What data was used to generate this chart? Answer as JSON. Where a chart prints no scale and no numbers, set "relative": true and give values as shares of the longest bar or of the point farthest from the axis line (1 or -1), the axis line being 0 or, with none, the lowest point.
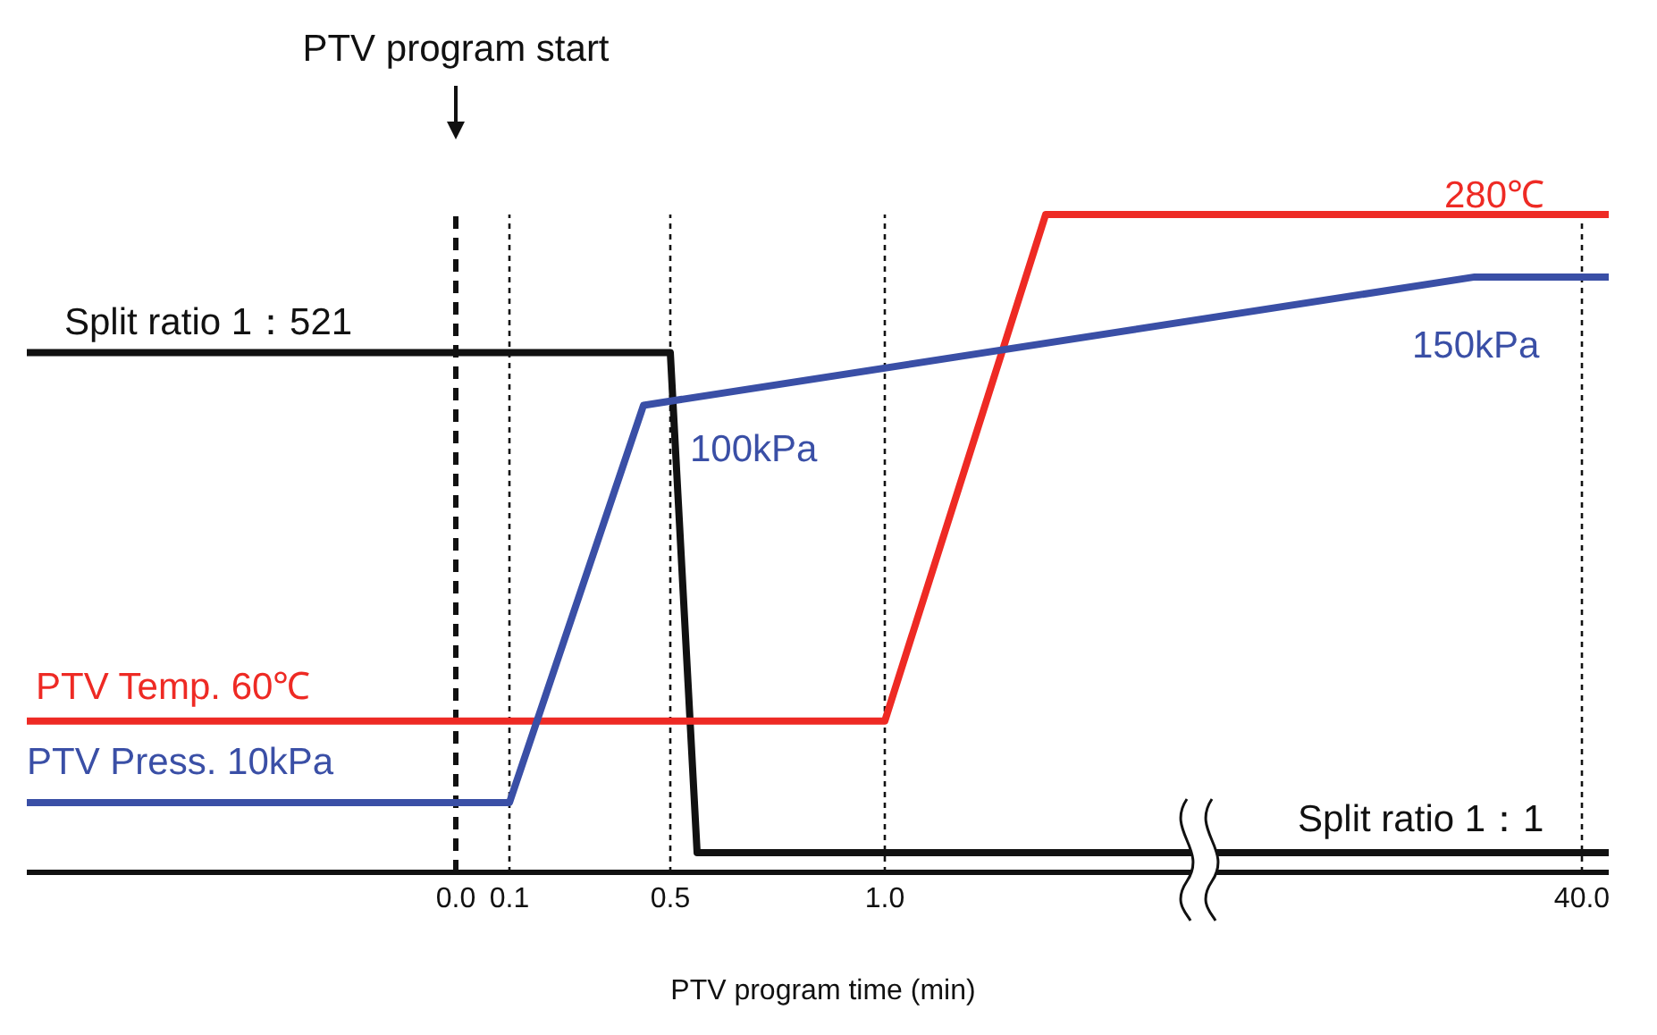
{
  "chart_data": {
    "type": "line",
    "relative": true,
    "xlabel": "PTV program time (min)",
    "categories": [
      null,
      null,
      null,
      null,
      null,
      null,
      null,
      null,
      null,
      null,
      null,
      null,
      null,
      null,
      null,
      null,
      "0.0",
      null,
      "0.1",
      null,
      null,
      null,
      null,
      null,
      "0.5",
      null,
      null,
      null,
      null,
      null,
      null,
      null,
      "1.0",
      null,
      null,
      null,
      null,
      null,
      null,
      null,
      null,
      null,
      null,
      null,
      null,
      null,
      null,
      null,
      null,
      null,
      null,
      null,
      null,
      null,
      null,
      null,
      null,
      null,
      "40.0",
      null
    ],
    "series": [
      {
        "color": "#111111",
        "values": [
          0.79,
          null,
          null,
          null,
          null,
          null,
          null,
          null,
          null,
          null,
          null,
          null,
          null,
          null,
          null,
          null,
          null,
          null,
          null,
          null,
          null,
          null,
          null,
          null,
          0.79,
          0.03,
          null,
          null,
          null,
          null,
          null,
          null,
          null,
          null,
          null,
          null,
          null,
          null,
          null,
          null,
          null,
          null,
          null,
          null,
          null,
          null,
          null,
          null,
          null,
          null,
          null,
          null,
          null,
          null,
          null,
          null,
          null,
          null,
          null,
          0.03
        ]
      },
      {
        "color": "#ee2a24",
        "values": [
          0.23,
          null,
          null,
          null,
          null,
          null,
          null,
          null,
          null,
          null,
          null,
          null,
          null,
          null,
          null,
          null,
          null,
          null,
          null,
          null,
          null,
          null,
          null,
          null,
          null,
          null,
          null,
          null,
          null,
          null,
          null,
          null,
          0.23,
          null,
          null,
          null,
          null,
          null,
          1,
          null,
          null,
          null,
          null,
          null,
          null,
          null,
          null,
          null,
          null,
          null,
          null,
          null,
          null,
          null,
          null,
          null,
          null,
          null,
          null,
          1
        ]
      },
      {
        "color": "#3a4fa6",
        "values": [
          0.106,
          null,
          null,
          null,
          null,
          null,
          null,
          null,
          null,
          null,
          null,
          null,
          null,
          null,
          null,
          null,
          null,
          null,
          0.106,
          null,
          null,
          null,
          null,
          0.71,
          null,
          null,
          null,
          null,
          null,
          null,
          null,
          null,
          null,
          null,
          null,
          null,
          null,
          null,
          null,
          null,
          null,
          null,
          null,
          null,
          null,
          null,
          null,
          null,
          null,
          null,
          null,
          null,
          null,
          null,
          0.905,
          null,
          null,
          null,
          null,
          0.905
        ]
      }
    ],
    "ref_lines": [
      {
        "axis": "x",
        "value": "0.0",
        "label": "PTV program start",
        "line_style": "dashed"
      },
      {
        "axis": "x",
        "value": "0.1",
        "line_style": "dotted"
      },
      {
        "axis": "x",
        "value": "0.5",
        "line_style": "dotted"
      },
      {
        "axis": "x",
        "value": "1.0",
        "line_style": "dotted"
      },
      {
        "axis": "x",
        "value": "40.0",
        "line_style": "dotted"
      }
    ],
    "annotations": [
      "Split ratio 1：521",
      "Split ratio 1：1",
      "PTV Temp. 60℃",
      "280℃",
      "PTV Press. 10kPa",
      "100kPa",
      "150kPa"
    ]
  }
}
